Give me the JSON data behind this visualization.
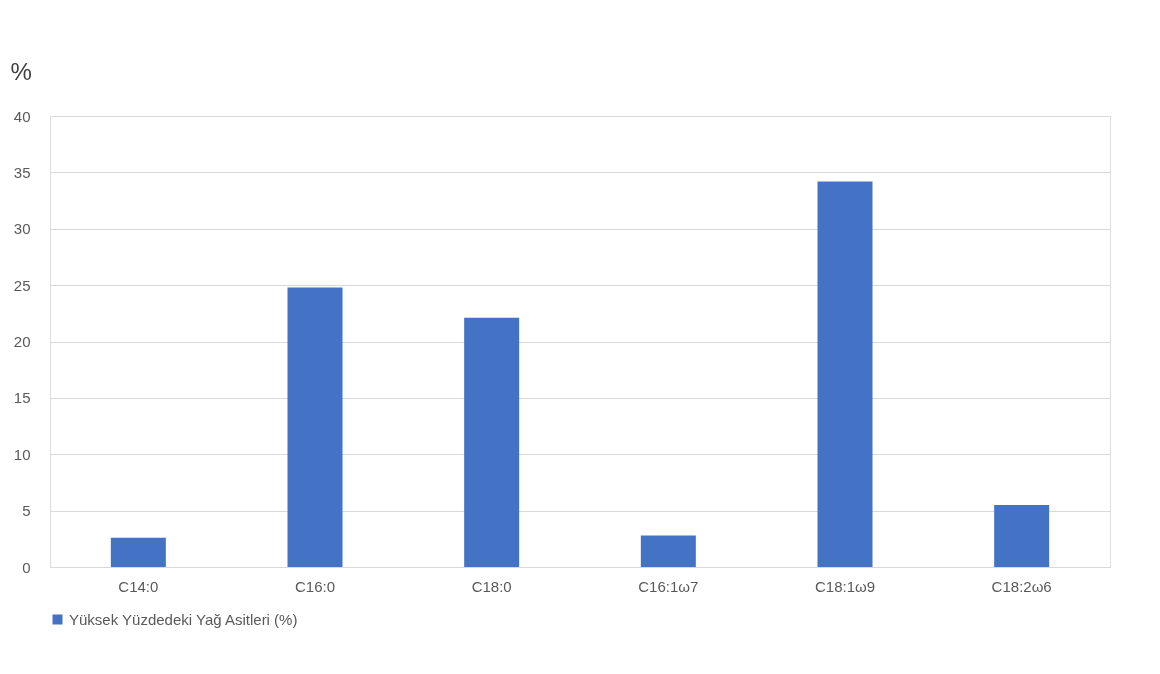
{
  "chart_data": {
    "type": "bar",
    "ylabel": "%",
    "categories": [
      "C14:0",
      "C16:0",
      "C18:0",
      "C16:1ω7",
      "C18:1ω9",
      "C18:2ω6"
    ],
    "series": [
      {
        "name": "Yüksek Yüzdedeki Yağ Asitleri (%)",
        "color": "#4472c4",
        "values": [
          2.6,
          24.8,
          22.1,
          2.8,
          34.2,
          5.5
        ]
      }
    ],
    "ylim": [
      0,
      40
    ],
    "yticks": [
      0,
      5,
      10,
      15,
      20,
      25,
      30,
      35,
      40
    ],
    "grid": "y",
    "legend": "bottom"
  }
}
